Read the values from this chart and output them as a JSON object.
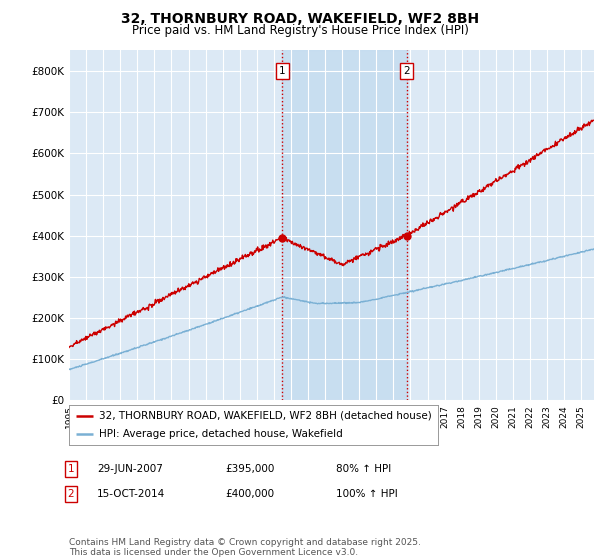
{
  "title": "32, THORNBURY ROAD, WAKEFIELD, WF2 8BH",
  "subtitle": "Price paid vs. HM Land Registry's House Price Index (HPI)",
  "ylim": [
    0,
    850000
  ],
  "yticks": [
    0,
    100000,
    200000,
    300000,
    400000,
    500000,
    600000,
    700000,
    800000
  ],
  "ytick_labels": [
    "£0",
    "£100K",
    "£200K",
    "£300K",
    "£400K",
    "£500K",
    "£600K",
    "£700K",
    "£800K"
  ],
  "xlim_start": 1995.0,
  "xlim_end": 2025.75,
  "background_color": "#ffffff",
  "plot_bg_color": "#dce9f5",
  "grid_color": "#ffffff",
  "red_line_color": "#cc0000",
  "blue_line_color": "#7ab0d4",
  "vline_color": "#cc0000",
  "sale1_x": 2007.49,
  "sale1_y": 395000,
  "sale1_label": "1",
  "sale1_date": "29-JUN-2007",
  "sale1_price": "£395,000",
  "sale1_hpi": "80% ↑ HPI",
  "sale2_x": 2014.79,
  "sale2_y": 400000,
  "sale2_label": "2",
  "sale2_date": "15-OCT-2014",
  "sale2_price": "£400,000",
  "sale2_hpi": "100% ↑ HPI",
  "legend_line1": "32, THORNBURY ROAD, WAKEFIELD, WF2 8BH (detached house)",
  "legend_line2": "HPI: Average price, detached house, Wakefield",
  "footer": "Contains HM Land Registry data © Crown copyright and database right 2025.\nThis data is licensed under the Open Government Licence v3.0.",
  "title_fontsize": 10,
  "subtitle_fontsize": 8.5,
  "tick_fontsize": 7.5,
  "legend_fontsize": 7.5,
  "footer_fontsize": 6.5
}
